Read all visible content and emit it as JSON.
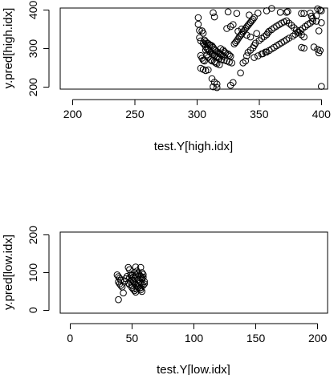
{
  "chart_data": [
    {
      "type": "scatter",
      "xlabel": "test.Y[high.idx]",
      "ylabel": "y.pred[high.idx]",
      "xlim": [
        190,
        405
      ],
      "ylim": [
        195,
        405
      ],
      "xticks": [
        200,
        250,
        300,
        350,
        400
      ],
      "yticks": [
        200,
        300,
        400
      ],
      "points": [
        [
          301,
          380
        ],
        [
          313,
          393
        ],
        [
          314,
          382
        ],
        [
          325,
          395
        ],
        [
          332,
          391
        ],
        [
          342,
          387
        ],
        [
          349,
          392
        ],
        [
          356,
          398
        ],
        [
          360,
          404
        ],
        [
          367,
          394
        ],
        [
          372,
          394
        ],
        [
          373,
          396
        ],
        [
          384,
          391
        ],
        [
          386,
          391
        ],
        [
          391,
          392
        ],
        [
          392,
          384
        ],
        [
          396,
          385
        ],
        [
          397,
          403
        ],
        [
          399,
          400
        ],
        [
          400,
          398
        ],
        [
          301,
          363
        ],
        [
          302,
          347
        ],
        [
          304,
          346
        ],
        [
          305,
          340
        ],
        [
          306,
          322
        ],
        [
          307,
          318
        ],
        [
          308,
          314
        ],
        [
          309,
          313
        ],
        [
          310,
          310
        ],
        [
          311,
          309
        ],
        [
          312,
          307
        ],
        [
          313,
          303
        ],
        [
          314,
          298
        ],
        [
          315,
          295
        ],
        [
          316,
          292
        ],
        [
          317,
          290
        ],
        [
          318,
          287
        ],
        [
          319,
          285
        ],
        [
          320,
          283
        ],
        [
          321,
          280
        ],
        [
          302,
          328
        ],
        [
          303,
          320
        ],
        [
          305,
          314
        ],
        [
          306,
          310
        ],
        [
          307,
          305
        ],
        [
          308,
          300
        ],
        [
          309,
          297
        ],
        [
          310,
          293
        ],
        [
          311,
          290
        ],
        [
          312,
          288
        ],
        [
          313,
          285
        ],
        [
          314,
          282
        ],
        [
          316,
          280
        ],
        [
          317,
          278
        ],
        [
          318,
          275
        ],
        [
          320,
          272
        ],
        [
          322,
          270
        ],
        [
          324,
          268
        ],
        [
          326,
          265
        ],
        [
          328,
          263
        ],
        [
          303,
          282
        ],
        [
          304,
          275
        ],
        [
          305,
          270
        ],
        [
          306,
          268
        ],
        [
          307,
          296
        ],
        [
          308,
          284
        ],
        [
          309,
          277
        ],
        [
          311,
          271
        ],
        [
          312,
          268
        ],
        [
          314,
          266
        ],
        [
          315,
          263
        ],
        [
          316,
          261
        ],
        [
          318,
          258
        ],
        [
          319,
          300
        ],
        [
          321,
          296
        ],
        [
          322,
          292
        ],
        [
          323,
          289
        ],
        [
          325,
          286
        ],
        [
          326,
          283
        ],
        [
          327,
          280
        ],
        [
          303,
          249
        ],
        [
          305,
          246
        ],
        [
          307,
          243
        ],
        [
          309,
          245
        ],
        [
          312,
          222
        ],
        [
          314,
          213
        ],
        [
          316,
          208
        ],
        [
          313,
          201
        ],
        [
          316,
          199
        ],
        [
          327,
          205
        ],
        [
          329,
          212
        ],
        [
          335,
          237
        ],
        [
          337,
          263
        ],
        [
          339,
          268
        ],
        [
          340,
          281
        ],
        [
          341,
          290
        ],
        [
          343,
          296
        ],
        [
          345,
          302
        ],
        [
          346,
          308
        ],
        [
          347,
          314
        ],
        [
          330,
          312
        ],
        [
          331,
          316
        ],
        [
          332,
          320
        ],
        [
          333,
          325
        ],
        [
          334,
          330
        ],
        [
          335,
          334
        ],
        [
          336,
          338
        ],
        [
          337,
          343
        ],
        [
          338,
          347
        ],
        [
          339,
          352
        ],
        [
          340,
          356
        ],
        [
          341,
          360
        ],
        [
          342,
          364
        ],
        [
          343,
          368
        ],
        [
          344,
          372
        ],
        [
          345,
          376
        ],
        [
          346,
          380
        ],
        [
          324,
          352
        ],
        [
          327,
          357
        ],
        [
          329,
          362
        ],
        [
          350,
          321
        ],
        [
          352,
          326
        ],
        [
          354,
          331
        ],
        [
          356,
          336
        ],
        [
          357,
          341
        ],
        [
          358,
          345
        ],
        [
          360,
          349
        ],
        [
          362,
          354
        ],
        [
          364,
          358
        ],
        [
          366,
          362
        ],
        [
          368,
          366
        ],
        [
          370,
          369
        ],
        [
          372,
          372
        ],
        [
          374,
          366
        ],
        [
          376,
          360
        ],
        [
          378,
          354
        ],
        [
          380,
          348
        ],
        [
          382,
          342
        ],
        [
          384,
          336
        ],
        [
          386,
          330
        ],
        [
          353,
          287
        ],
        [
          356,
          291
        ],
        [
          358,
          295
        ],
        [
          360,
          299
        ],
        [
          362,
          303
        ],
        [
          364,
          307
        ],
        [
          366,
          311
        ],
        [
          368,
          315
        ],
        [
          370,
          319
        ],
        [
          372,
          323
        ],
        [
          374,
          327
        ],
        [
          377,
          332
        ],
        [
          379,
          337
        ],
        [
          381,
          342
        ],
        [
          383,
          347
        ],
        [
          385,
          352
        ],
        [
          387,
          357
        ],
        [
          389,
          362
        ],
        [
          391,
          366
        ],
        [
          393,
          371
        ],
        [
          346,
          277
        ],
        [
          349,
          281
        ],
        [
          352,
          286
        ],
        [
          355,
          291
        ],
        [
          384,
          303
        ],
        [
          386,
          301
        ],
        [
          394,
          304
        ],
        [
          397,
          298
        ],
        [
          398,
          289
        ],
        [
          399,
          295
        ],
        [
          400,
          202
        ],
        [
          398,
          346
        ],
        [
          400,
          367
        ],
        [
          396,
          371
        ],
        [
          393,
          378
        ],
        [
          340,
          335
        ],
        [
          343,
          330
        ],
        [
          348,
          339
        ],
        [
          333,
          345
        ],
        [
          336,
          351
        ]
      ]
    },
    {
      "type": "scatter",
      "xlabel": "test.Y[low.idx]",
      "ylabel": "y.pred[low.idx]",
      "xlim": [
        -8,
        208
      ],
      "ylim": [
        -8,
        208
      ],
      "xticks": [
        0,
        50,
        100,
        150,
        200
      ],
      "yticks": [
        0,
        100,
        200
      ],
      "points": [
        [
          38,
          94
        ],
        [
          39,
          89
        ],
        [
          40,
          85
        ],
        [
          41,
          80
        ],
        [
          39,
          75
        ],
        [
          40,
          70
        ],
        [
          41,
          66
        ],
        [
          42,
          62
        ],
        [
          39,
          28
        ],
        [
          43,
          46
        ],
        [
          44,
          78
        ],
        [
          45,
          84
        ],
        [
          46,
          90
        ],
        [
          47,
          72
        ],
        [
          48,
          68
        ],
        [
          47,
          114
        ],
        [
          48,
          108
        ],
        [
          49,
          96
        ],
        [
          50,
          92
        ],
        [
          51,
          88
        ],
        [
          52,
          84
        ],
        [
          50,
          80
        ],
        [
          51,
          76
        ],
        [
          52,
          72
        ],
        [
          53,
          68
        ],
        [
          54,
          64
        ],
        [
          50,
          60
        ],
        [
          51,
          56
        ],
        [
          52,
          52
        ],
        [
          53,
          48
        ],
        [
          53,
          115
        ],
        [
          54,
          104
        ],
        [
          55,
          98
        ],
        [
          56,
          94
        ],
        [
          57,
          90
        ],
        [
          58,
          86
        ],
        [
          55,
          82
        ],
        [
          56,
          78
        ],
        [
          57,
          74
        ],
        [
          58,
          70
        ],
        [
          59,
          66
        ],
        [
          55,
          62
        ],
        [
          56,
          58
        ],
        [
          57,
          54
        ],
        [
          58,
          50
        ],
        [
          57,
          114
        ],
        [
          58,
          100
        ],
        [
          59,
          95
        ],
        [
          59,
          88
        ],
        [
          58,
          82
        ],
        [
          60,
          76
        ],
        [
          60,
          70
        ],
        [
          49,
          75
        ],
        [
          48,
          86
        ],
        [
          53,
          94
        ],
        [
          54,
          56
        ],
        [
          50,
          66
        ],
        [
          55,
          72
        ],
        [
          57,
          60
        ],
        [
          52,
          100
        ]
      ]
    }
  ]
}
